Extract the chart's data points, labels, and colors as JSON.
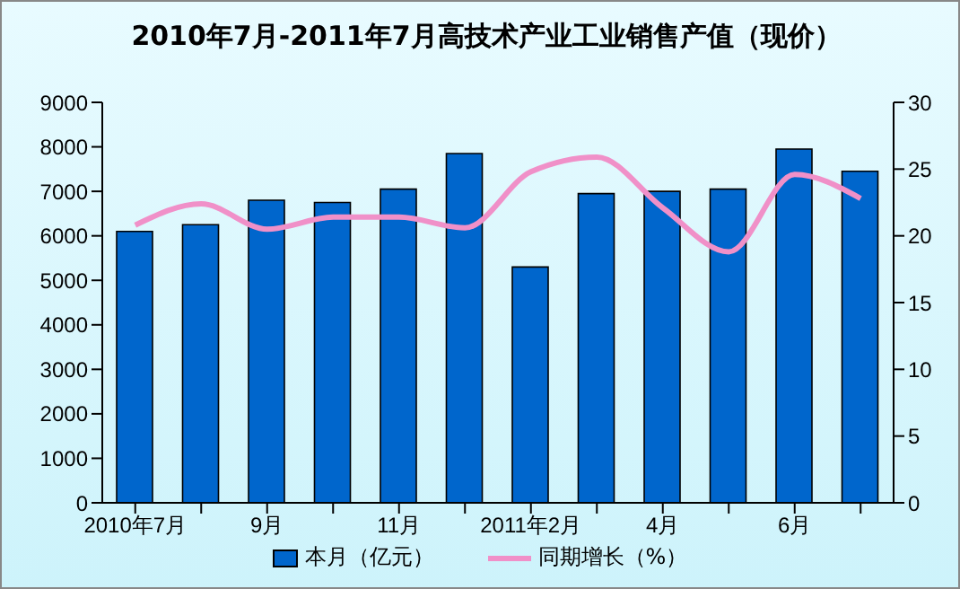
{
  "chart_data": {
    "type": "bar",
    "title": "2010年7月-2011年7月高技术产业工业销售产值（现价）",
    "categories": [
      "2010年7月",
      null,
      "9月",
      null,
      "11月",
      null,
      "2011年2月",
      null,
      "4月",
      null,
      "6月",
      null
    ],
    "series": [
      {
        "name": "本月（亿元）",
        "color": "#0066cc",
        "values": [
          6100,
          6250,
          6800,
          6750,
          7050,
          7850,
          5300,
          6950,
          7000,
          7050,
          7950,
          7450
        ]
      },
      {
        "name": "同期增长（%）",
        "type": "line",
        "axis": "y2",
        "color": "#f090c8",
        "values": [
          20.8,
          22.4,
          20.5,
          21.4,
          21.4,
          20.6,
          24.8,
          25.9,
          22.1,
          18.8,
          24.6,
          22.8
        ]
      }
    ],
    "ylim": [
      0,
      9000
    ],
    "yticks": [
      0,
      1000,
      2000,
      3000,
      4000,
      5000,
      6000,
      7000,
      8000,
      9000
    ],
    "y2lim": [
      0,
      30
    ],
    "y2ticks": [
      0,
      5,
      10,
      15,
      20,
      25,
      30
    ],
    "grid": false,
    "legend": "bottom",
    "marker": "none"
  }
}
